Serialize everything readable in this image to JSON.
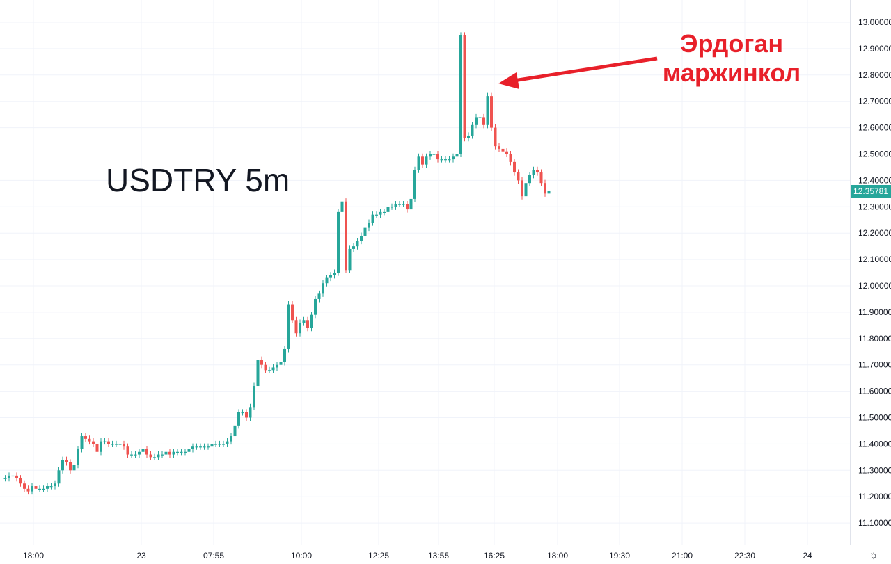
{
  "chart_data": {
    "type": "candlestick",
    "title": "USDTRY 5m",
    "annotation": {
      "line1": "Эрдоган",
      "line2": "маржинкол"
    },
    "last_price": "12.35781",
    "ylim": [
      11.03,
      13.05
    ],
    "y_ticks": [
      "13.00000",
      "12.90000",
      "12.80000",
      "12.70000",
      "12.60000",
      "12.50000",
      "12.40000",
      "12.30000",
      "12.20000",
      "12.10000",
      "12.00000",
      "11.90000",
      "11.80000",
      "11.70000",
      "11.60000",
      "11.50000",
      "11.40000",
      "11.30000",
      "11.20000",
      "11.10000"
    ],
    "x_ticks": [
      "18:00",
      "23",
      "07:55",
      "10:00",
      "12:25",
      "13:55",
      "16:25",
      "18:00",
      "19:30",
      "21:00",
      "22:30",
      "24"
    ],
    "grid": true,
    "colors": {
      "up": "#26a69a",
      "down": "#ef5350",
      "grid": "#f0f3fa",
      "annotation": "#e8202a"
    },
    "price_path": [
      11.27,
      11.27,
      11.28,
      11.28,
      11.27,
      11.25,
      11.23,
      11.22,
      11.24,
      11.23,
      11.23,
      11.23,
      11.24,
      11.24,
      11.25,
      11.3,
      11.34,
      11.33,
      11.3,
      11.32,
      11.38,
      11.43,
      11.42,
      11.41,
      11.4,
      11.37,
      11.41,
      11.41,
      11.4,
      11.4,
      11.4,
      11.4,
      11.39,
      11.36,
      11.36,
      11.36,
      11.37,
      11.38,
      11.36,
      11.35,
      11.35,
      11.36,
      11.36,
      11.37,
      11.36,
      11.37,
      11.37,
      11.37,
      11.37,
      11.38,
      11.39,
      11.39,
      11.39,
      11.39,
      11.39,
      11.4,
      11.4,
      11.4,
      11.4,
      11.41,
      11.43,
      11.47,
      11.52,
      11.52,
      11.5,
      11.54,
      11.62,
      11.72,
      11.7,
      11.68,
      11.68,
      11.69,
      11.7,
      11.71,
      11.76,
      11.93,
      11.87,
      11.82,
      11.86,
      11.87,
      11.84,
      11.89,
      11.95,
      11.97,
      12.01,
      12.03,
      12.04,
      12.05,
      12.28,
      12.32,
      12.06,
      12.14,
      12.15,
      12.17,
      12.19,
      12.22,
      12.24,
      12.27,
      12.27,
      12.28,
      12.28,
      12.3,
      12.3,
      12.31,
      12.31,
      12.31,
      12.29,
      12.33,
      12.44,
      12.49,
      12.46,
      12.49,
      12.5,
      12.5,
      12.48,
      12.48,
      12.48,
      12.48,
      12.49,
      12.5,
      12.95,
      12.56,
      12.57,
      12.61,
      12.64,
      12.64,
      12.61,
      12.72,
      12.6,
      12.53,
      12.52,
      12.51,
      12.5,
      12.47,
      12.43,
      12.4,
      12.34,
      12.39,
      12.42,
      12.44,
      12.43,
      12.39,
      12.35,
      12.36
    ]
  }
}
